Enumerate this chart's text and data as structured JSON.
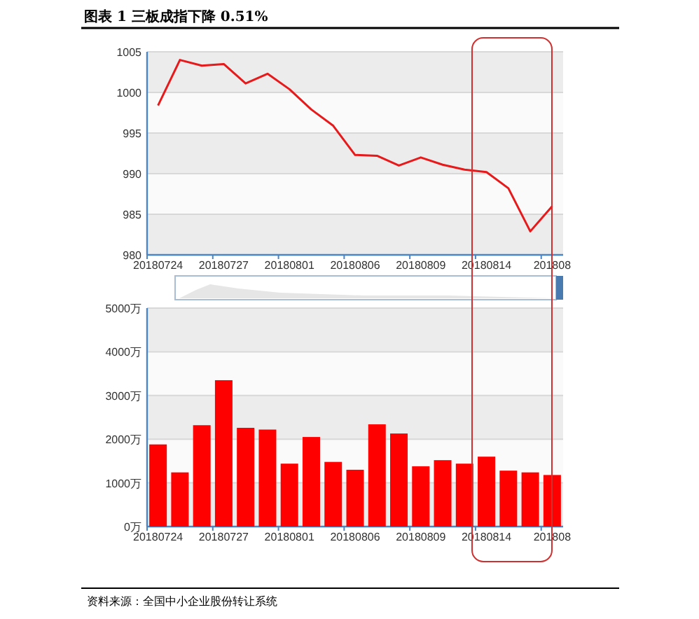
{
  "chart_data": [
    {
      "type": "line",
      "title": "图表 1 三板成指下降 0.51%",
      "categories": [
        "20180724",
        null,
        null,
        "20180727",
        null,
        null,
        "20180801",
        null,
        null,
        "20180806",
        null,
        null,
        "20180809",
        null,
        null,
        "20180814",
        null,
        null,
        "201808"
      ],
      "series": [
        {
          "color": "#e8191a",
          "values": [
            998.4,
            1004.0,
            1003.3,
            1003.5,
            1001.1,
            1002.3,
            1000.4,
            997.9,
            995.9,
            992.3,
            992.2,
            991.0,
            992.0,
            991.1,
            990.5,
            990.2,
            988.2,
            982.9,
            986.0
          ]
        }
      ],
      "ylim": [
        980,
        1005
      ],
      "yticks": [
        980,
        985,
        990,
        995,
        1000,
        1005
      ],
      "grid": "y",
      "marker": "none"
    },
    {
      "type": "bar",
      "categories": [
        "20180724",
        null,
        null,
        "20180727",
        null,
        null,
        "20180801",
        null,
        null,
        "20180806",
        null,
        null,
        "20180809",
        null,
        null,
        "20180814",
        null,
        null,
        "201808"
      ],
      "series": [
        {
          "color": "#ff0000",
          "values": [
            1880,
            1240,
            2320,
            3350,
            2260,
            2220,
            1440,
            2050,
            1480,
            1300,
            2340,
            2130,
            1380,
            1520,
            1440,
            1600,
            1280,
            1240,
            1180
          ]
        }
      ],
      "ylim": [
        0,
        5000
      ],
      "yticks": [
        {
          "value": 0,
          "label": "0万"
        },
        {
          "value": 1000,
          "label": "1000万"
        },
        {
          "value": 2000,
          "label": "2000万"
        },
        {
          "value": 3000,
          "label": "3000万"
        },
        {
          "value": 4000,
          "label": "4000万"
        },
        {
          "value": 5000,
          "label": "5000万"
        }
      ],
      "grid": "y",
      "annotations": [
        "资料来源：全国中小企业股份转让系统"
      ]
    }
  ]
}
